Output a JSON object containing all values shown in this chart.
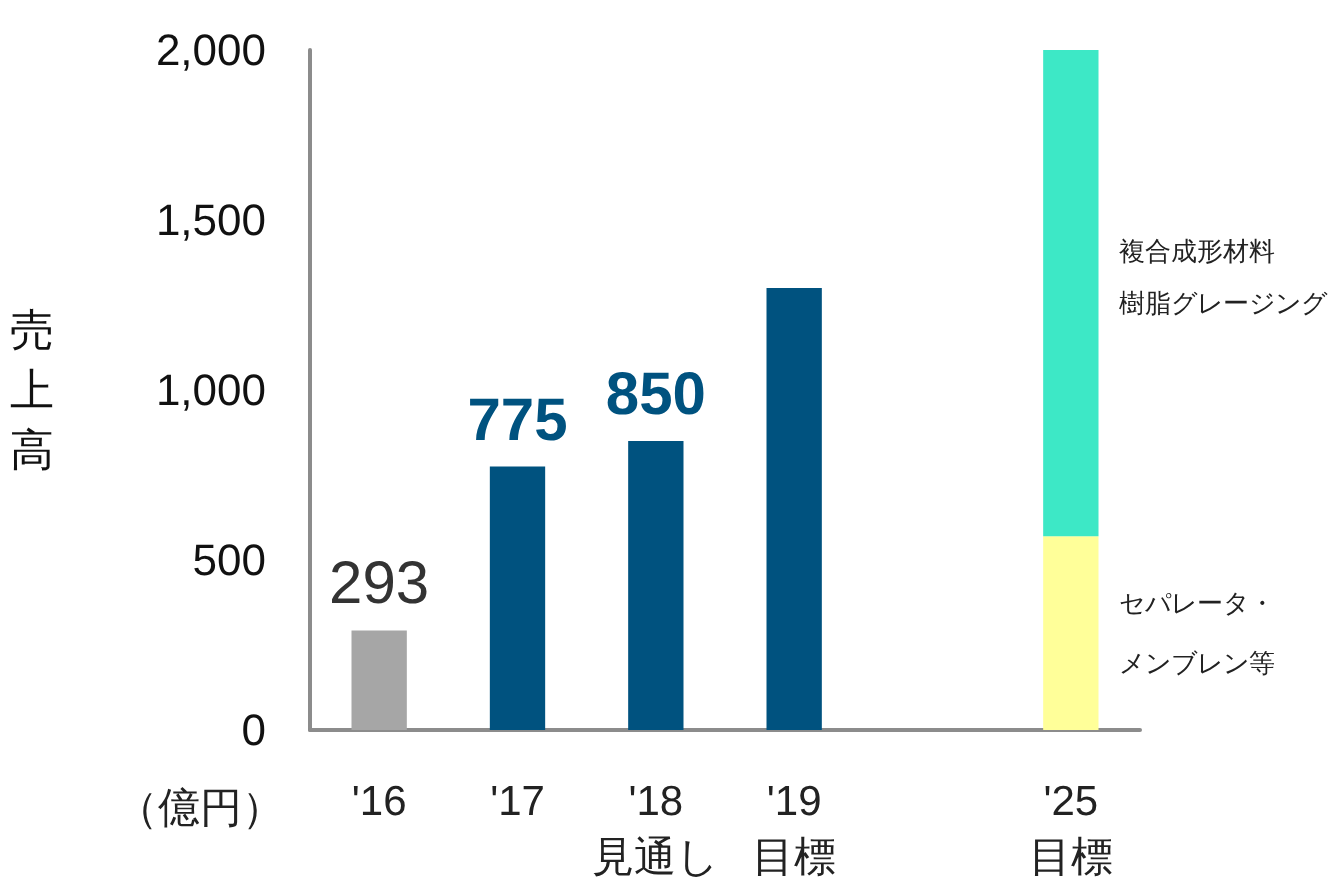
{
  "chart_data": {
    "type": "bar",
    "ylabel": "売上高",
    "annotations": [
      "（億円）",
      "複合成形材料",
      "樹脂グレージング"
    ],
    "categories": [
      "'16",
      "'17",
      "'18\n見通し",
      "'19\n目標",
      null,
      "'25\n目標"
    ],
    "series": [
      {
        "colors": [
          "#a6a6a6",
          "#00527f",
          "#00527f",
          "#00527f",
          null,
          null
        ],
        "values": [
          293,
          775,
          850,
          1300,
          null,
          null
        ],
        "value_labels": [
          "293",
          "775",
          "850",
          null,
          null,
          null
        ]
      },
      {
        "name": "セパレータ・メンブレン等",
        "color": "#ffff99",
        "values": [
          null,
          null,
          null,
          null,
          null,
          570
        ]
      },
      {
        "color": "#3de8c6",
        "values": [
          null,
          null,
          null,
          null,
          null,
          1430
        ]
      }
    ],
    "stacked": true,
    "ylim": [
      0,
      2000
    ],
    "yticks": [
      0,
      500,
      {
        "value": 1000,
        "label": "1,000"
      },
      {
        "value": 1500,
        "label": "1,500"
      },
      {
        "value": 2000,
        "label": "2,000"
      }
    ],
    "grid": false,
    "legend": false
  }
}
